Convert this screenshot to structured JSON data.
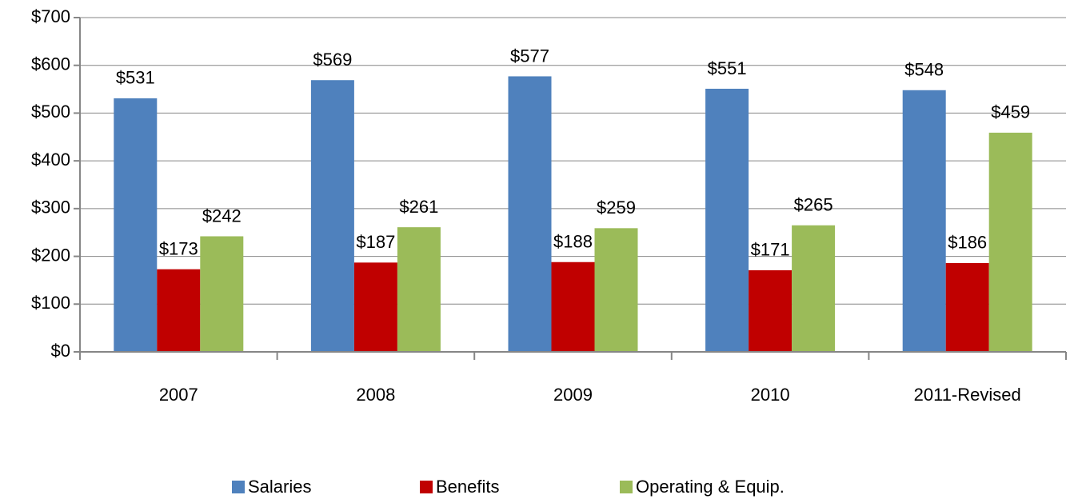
{
  "chart_data": {
    "type": "bar",
    "categories": [
      "2007",
      "2008",
      "2009",
      "2010",
      "2011-Revised"
    ],
    "series": [
      {
        "name": "Salaries",
        "color": "#4f81bd",
        "values": [
          531,
          569,
          577,
          551,
          548
        ],
        "value_labels": [
          "$531",
          "$569",
          "$577",
          "$551",
          "$548"
        ]
      },
      {
        "name": "Benefits",
        "color": "#c00000",
        "values": [
          173,
          187,
          188,
          171,
          186
        ],
        "value_labels": [
          "$173",
          "$187",
          "$188",
          "$171",
          "$186"
        ]
      },
      {
        "name": "Operating & Equip.",
        "color": "#9bbb59",
        "values": [
          242,
          261,
          259,
          265,
          459
        ],
        "value_labels": [
          "$242",
          "$261",
          "$259",
          "$265",
          "$459"
        ]
      }
    ],
    "ylim": [
      0,
      700
    ],
    "yticks": [
      {
        "value": 0,
        "label": "$0"
      },
      {
        "value": 100,
        "label": "$100"
      },
      {
        "value": 200,
        "label": "$200"
      },
      {
        "value": 300,
        "label": "$300"
      },
      {
        "value": 400,
        "label": "$400"
      },
      {
        "value": 500,
        "label": "$500"
      },
      {
        "value": 600,
        "label": "$600"
      },
      {
        "value": 700,
        "label": "$700"
      }
    ],
    "grid": true,
    "legend": "bottom"
  }
}
